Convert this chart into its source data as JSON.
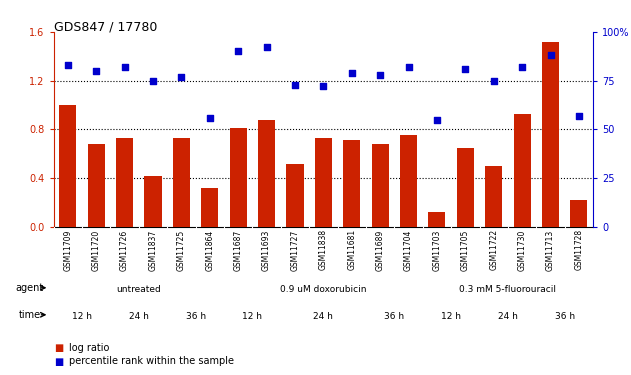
{
  "title": "GDS847 / 17780",
  "samples": [
    "GSM11709",
    "GSM11720",
    "GSM11726",
    "GSM11837",
    "GSM11725",
    "GSM11864",
    "GSM11687",
    "GSM11693",
    "GSM11727",
    "GSM11838",
    "GSM11681",
    "GSM11689",
    "GSM11704",
    "GSM11703",
    "GSM11705",
    "GSM11722",
    "GSM11730",
    "GSM11713",
    "GSM11728"
  ],
  "log_ratio": [
    1.0,
    0.68,
    0.73,
    0.42,
    0.73,
    0.32,
    0.81,
    0.88,
    0.52,
    0.73,
    0.71,
    0.68,
    0.75,
    0.12,
    0.65,
    0.5,
    0.93,
    1.52,
    0.22
  ],
  "pct_rank": [
    83,
    80,
    82,
    75,
    77,
    56,
    90,
    92,
    73,
    72,
    79,
    78,
    82,
    55,
    81,
    75,
    82,
    88,
    57
  ],
  "agent_groups": [
    {
      "label": "untreated",
      "start": 0,
      "end": 5,
      "color": "#ccffcc"
    },
    {
      "label": "0.9 uM doxorubicin",
      "start": 6,
      "end": 12,
      "color": "#66cc66"
    },
    {
      "label": "0.3 mM 5-fluorouracil",
      "start": 13,
      "end": 18,
      "color": "#44aa44"
    }
  ],
  "time_groups": [
    {
      "label": "12 h",
      "start": 0,
      "end": 1,
      "color": "#ffaaff"
    },
    {
      "label": "24 h",
      "start": 2,
      "end": 3,
      "color": "#dd55dd"
    },
    {
      "label": "36 h",
      "start": 4,
      "end": 5,
      "color": "#cc22cc"
    },
    {
      "label": "12 h",
      "start": 6,
      "end": 7,
      "color": "#ffaaff"
    },
    {
      "label": "24 h",
      "start": 8,
      "end": 10,
      "color": "#dd55dd"
    },
    {
      "label": "36 h",
      "start": 11,
      "end": 12,
      "color": "#cc22cc"
    },
    {
      "label": "12 h",
      "start": 13,
      "end": 14,
      "color": "#ffaaff"
    },
    {
      "label": "24 h",
      "start": 15,
      "end": 16,
      "color": "#dd55dd"
    },
    {
      "label": "36 h",
      "start": 17,
      "end": 18,
      "color": "#cc22cc"
    }
  ],
  "bar_color": "#cc2200",
  "dot_color": "#0000cc",
  "ylim_left": [
    0,
    1.6
  ],
  "ylim_right": [
    0,
    100
  ],
  "yticks_left": [
    0,
    0.4,
    0.8,
    1.2,
    1.6
  ],
  "yticks_right": [
    0,
    25,
    50,
    75,
    100
  ],
  "background_color": "#ffffff",
  "plot_bg_color": "#ffffff",
  "xtick_bg_color": "#d8d8d8"
}
